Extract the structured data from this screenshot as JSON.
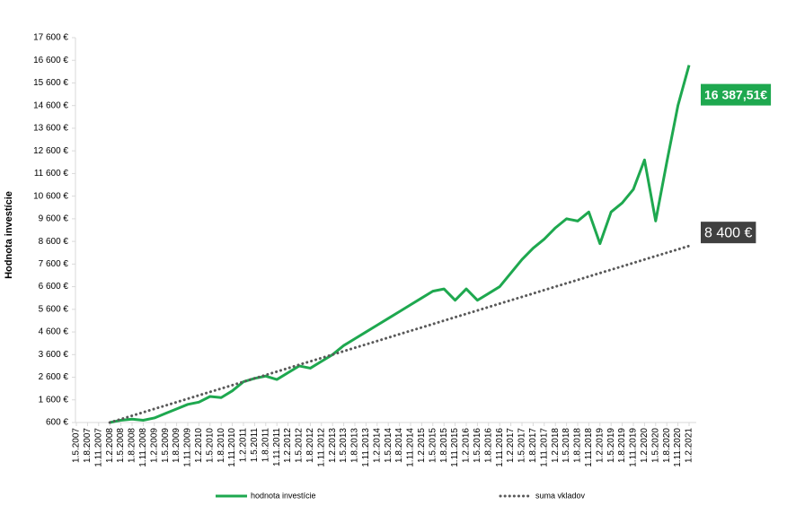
{
  "chart_data": {
    "type": "line",
    "y_label": "Hodnota investície",
    "categories": [
      "1.5.2007",
      "1.8.2007",
      "1.11.2007",
      "1.2.2008",
      "1.5.2008",
      "1.8.2008",
      "1.11.2008",
      "1.2.2009",
      "1.5.2009",
      "1.8.2009",
      "1.11.2009",
      "1.2.2010",
      "1.5.2010",
      "1.8.2010",
      "1.11.2010",
      "1.2.2011",
      "1.5.2011",
      "1.8.2011",
      "1.11.2011",
      "1.2.2012",
      "1.5.2012",
      "1.8.2012",
      "1.11.2012",
      "1.2.2013",
      "1.5.2013",
      "1.8.2013",
      "1.11.2013",
      "1.2.2014",
      "1.5.2014",
      "1.8.2014",
      "1.11.2014",
      "1.2.2015",
      "1.5.2015",
      "1.8.2015",
      "1.11.2015",
      "1.2.2016",
      "1.5.2016",
      "1.8.2016",
      "1.11.2016",
      "1.2.2017",
      "1.5.2017",
      "1.8.2017",
      "1.11.2017",
      "1.2.2018",
      "1.5.2018",
      "1.8.2018",
      "1.11.2018",
      "1.2.2019",
      "1.5.2019",
      "1.8.2019",
      "1.11.2019",
      "1.2.2020",
      "1.5.2020",
      "1.8.2020",
      "1.11.2020",
      "1.2.2021"
    ],
    "series": [
      {
        "name": "hodnota investície",
        "color": "#1ea84f",
        "dashed": false,
        "values": [
          null,
          null,
          null,
          600,
          700,
          750,
          700,
          800,
          1000,
          1200,
          1400,
          1500,
          1750,
          1700,
          2000,
          2400,
          2550,
          2650,
          2500,
          2800,
          3100,
          3000,
          3300,
          3600,
          4000,
          4300,
          4600,
          4900,
          5200,
          5500,
          5800,
          6100,
          6400,
          6500,
          6000,
          6500,
          6000,
          6300,
          6600,
          7200,
          7800,
          8300,
          8700,
          9200,
          9600,
          9500,
          9900,
          8500,
          9900,
          10300,
          10900,
          12200,
          9500,
          12100,
          14600,
          16387.51
        ],
        "value_labels": [
          null,
          null,
          null,
          null,
          null,
          null,
          null,
          null,
          null,
          null,
          null,
          null,
          null,
          null,
          null,
          null,
          null,
          null,
          null,
          null,
          null,
          null,
          null,
          null,
          null,
          null,
          null,
          null,
          null,
          null,
          null,
          null,
          null,
          null,
          null,
          null,
          null,
          null,
          null,
          null,
          null,
          null,
          null,
          null,
          null,
          null,
          null,
          null,
          null,
          null,
          null,
          null,
          null,
          null,
          null,
          "16 387,51€"
        ]
      },
      {
        "name": "suma vkladov",
        "color": "#595959",
        "dashed": true,
        "values": [
          null,
          null,
          null,
          600,
          750,
          900,
          1050,
          1200,
          1350,
          1500,
          1650,
          1800,
          1950,
          2100,
          2250,
          2400,
          2550,
          2700,
          2850,
          3000,
          3150,
          3300,
          3450,
          3600,
          3750,
          3900,
          4050,
          4200,
          4350,
          4500,
          4650,
          4800,
          4950,
          5100,
          5250,
          5400,
          5550,
          5700,
          5850,
          6000,
          6150,
          6300,
          6450,
          6600,
          6750,
          6900,
          7050,
          7200,
          7350,
          7500,
          7650,
          7800,
          7950,
          8100,
          8250,
          8400
        ],
        "value_labels": [
          null,
          null,
          null,
          null,
          null,
          null,
          null,
          null,
          null,
          null,
          null,
          null,
          null,
          null,
          null,
          null,
          null,
          null,
          null,
          null,
          null,
          null,
          null,
          null,
          null,
          null,
          null,
          null,
          null,
          null,
          null,
          null,
          null,
          null,
          null,
          null,
          null,
          null,
          null,
          null,
          null,
          null,
          null,
          null,
          null,
          null,
          null,
          null,
          null,
          null,
          null,
          null,
          null,
          null,
          null,
          "8 400 €"
        ]
      }
    ],
    "ylim": [
      600,
      17600
    ],
    "yticks": [
      {
        "value": 600,
        "label": "600 €"
      },
      {
        "value": 1600,
        "label": "1 600 €"
      },
      {
        "value": 2600,
        "label": "2 600 €"
      },
      {
        "value": 3600,
        "label": "3 600 €"
      },
      {
        "value": 4600,
        "label": "4 600 €"
      },
      {
        "value": 5600,
        "label": "5 600 €"
      },
      {
        "value": 6600,
        "label": "6 600 €"
      },
      {
        "value": 7600,
        "label": "7 600 €"
      },
      {
        "value": 8600,
        "label": "8 600 €"
      },
      {
        "value": 9600,
        "label": "9 600 €"
      },
      {
        "value": 10600,
        "label": "10 600 €"
      },
      {
        "value": 11600,
        "label": "11 600 €"
      },
      {
        "value": 12600,
        "label": "12 600 €"
      },
      {
        "value": 13600,
        "label": "13 600 €"
      },
      {
        "value": 14600,
        "label": "14 600 €"
      },
      {
        "value": 15600,
        "label": "15 600 €"
      },
      {
        "value": 16600,
        "label": "16 600 €"
      },
      {
        "value": 17600,
        "label": "17 600 €"
      }
    ],
    "grid": false,
    "legend": "bottom"
  }
}
